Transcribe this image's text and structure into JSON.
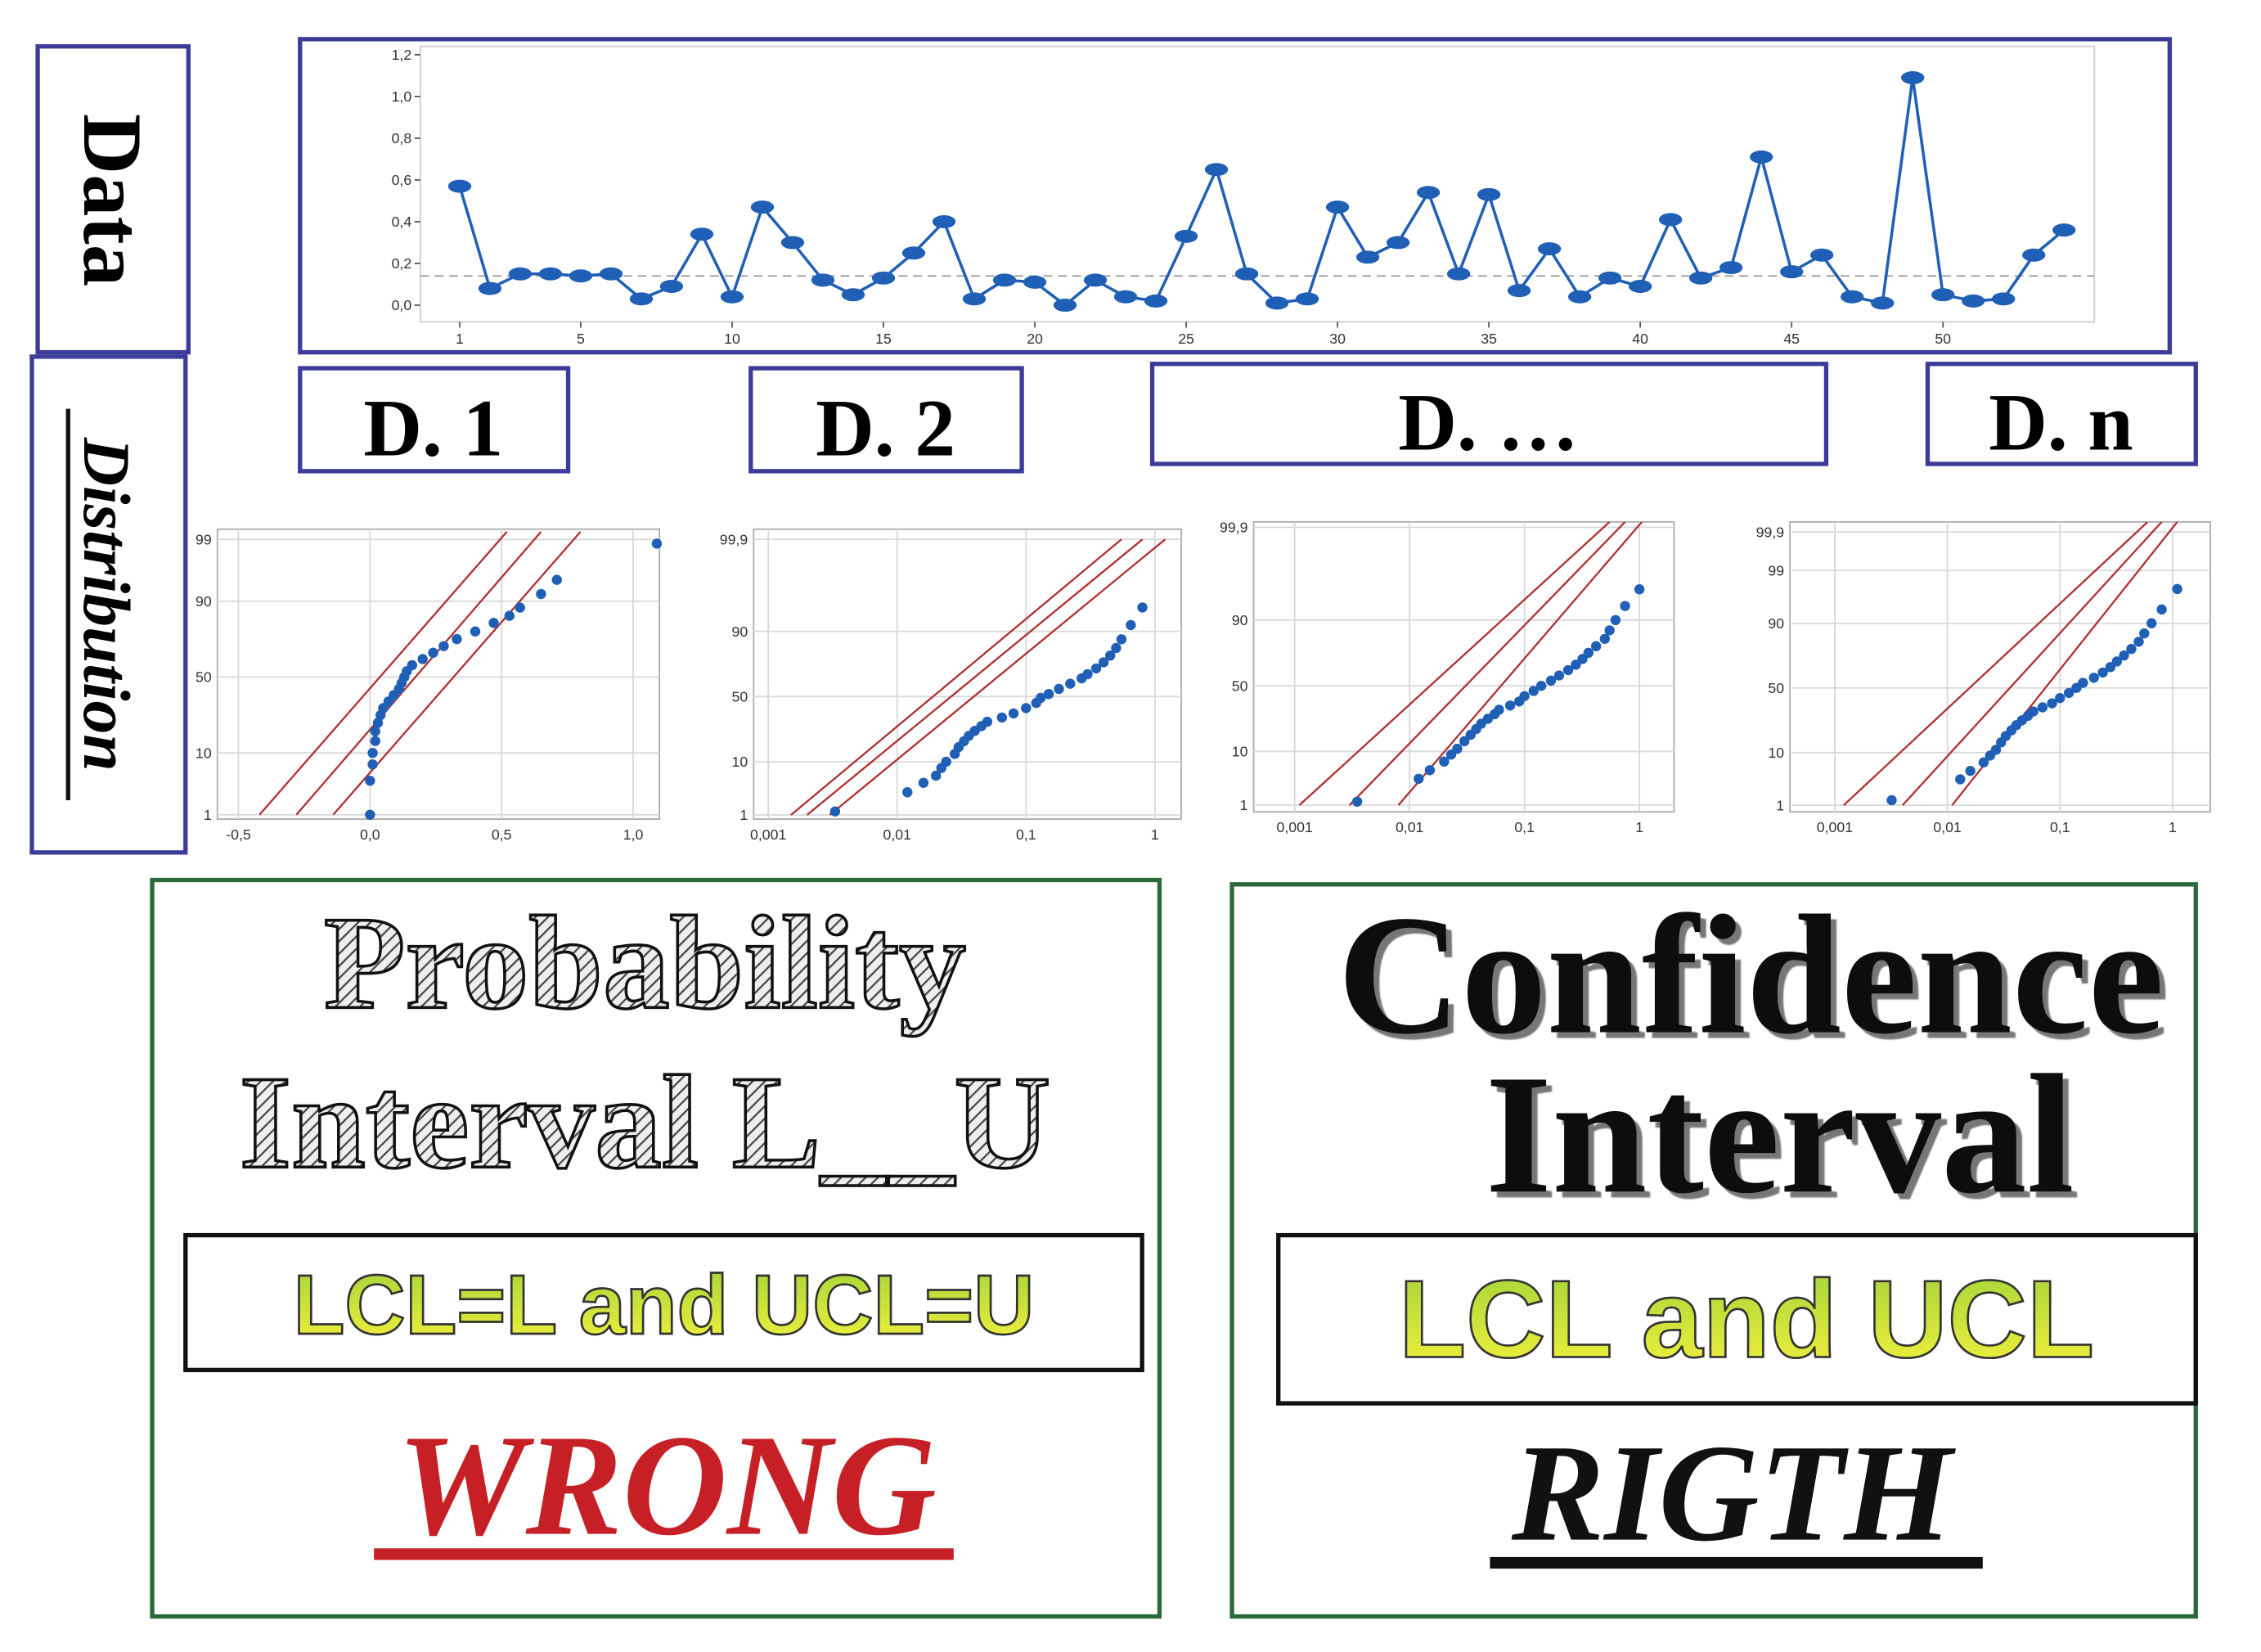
{
  "labels": {
    "data": "Data",
    "distribution": "Distribution"
  },
  "segments": [
    "D. 1",
    "D. 2",
    "D. …",
    "D. n"
  ],
  "chart_data": [
    {
      "type": "line",
      "x": [
        1,
        2,
        3,
        4,
        5,
        6,
        7,
        8,
        9,
        10,
        11,
        12,
        13,
        14,
        15,
        16,
        17,
        18,
        19,
        20,
        21,
        22,
        23,
        24,
        25,
        26,
        27,
        28,
        29,
        30,
        31,
        32,
        33,
        34,
        35,
        36,
        37,
        38,
        39,
        40,
        41,
        42,
        43,
        44,
        45,
        46,
        47,
        48,
        49,
        50,
        51,
        52,
        53,
        54
      ],
      "values": [
        0.57,
        0.08,
        0.15,
        0.15,
        0.14,
        0.15,
        0.03,
        0.09,
        0.34,
        0.04,
        0.47,
        0.3,
        0.12,
        0.05,
        0.13,
        0.25,
        0.4,
        0.03,
        0.12,
        0.11,
        0.0,
        0.12,
        0.04,
        0.02,
        0.33,
        0.65,
        0.15,
        0.01,
        0.03,
        0.47,
        0.23,
        0.3,
        0.54,
        0.15,
        0.53,
        0.07,
        0.27,
        0.04,
        0.13,
        0.09,
        0.41,
        0.13,
        0.18,
        0.71,
        0.16,
        0.24,
        0.04,
        0.01,
        1.09,
        0.05,
        0.02,
        0.03,
        0.24,
        0.36
      ],
      "color": "#1f5fb5",
      "xlim": [
        -0.3,
        55
      ],
      "xticks": [
        1,
        5,
        10,
        15,
        20,
        25,
        30,
        35,
        40,
        45,
        50
      ],
      "ylim": [
        -0.08,
        1.24
      ],
      "yticks": [
        {
          "value": 0,
          "label": "0,0"
        },
        {
          "value": 0.2,
          "label": "0,2"
        },
        {
          "value": 0.4,
          "label": "0,4"
        },
        {
          "value": 0.6,
          "label": "0,6"
        },
        {
          "value": 0.8,
          "label": "0,8"
        },
        {
          "value": 1.0,
          "label": "1,0"
        },
        {
          "value": 1.2,
          "label": "1,2"
        }
      ],
      "reference_line": 0.14
    },
    {
      "type": "probability",
      "xscale": "linear",
      "color": "#1f5fb5",
      "line_color": "#b03030",
      "grid": true,
      "x": [
        0.0,
        0.0,
        0.01,
        0.01,
        0.02,
        0.02,
        0.03,
        0.04,
        0.05,
        0.07,
        0.09,
        0.11,
        0.12,
        0.13,
        0.14,
        0.16,
        0.2,
        0.24,
        0.28,
        0.33,
        0.4,
        0.47,
        0.53,
        0.57,
        0.65,
        0.71,
        1.09
      ],
      "values": [
        1,
        4,
        7,
        10,
        14,
        18,
        22,
        26,
        30,
        34,
        38,
        42,
        46,
        50,
        54,
        58,
        62,
        66,
        70,
        74,
        78,
        82,
        85,
        88,
        92,
        95,
        98.8
      ],
      "fit_lines": [
        [
          [
            -0.42,
            1
          ],
          [
            0.52,
            99.3
          ]
        ],
        [
          [
            -0.28,
            1
          ],
          [
            0.65,
            99.3
          ]
        ],
        [
          [
            -0.14,
            1
          ],
          [
            0.8,
            99.3
          ]
        ]
      ],
      "xlim": [
        -0.58,
        1.1
      ],
      "xticks": [
        {
          "value": -0.5,
          "label": "-0,5"
        },
        {
          "value": 0,
          "label": "0,0"
        },
        {
          "value": 0.5,
          "label": "0,5"
        },
        {
          "value": 1.0,
          "label": "1,0"
        }
      ],
      "ylim": [
        0.82,
        99.38
      ],
      "yticks": [
        1,
        10,
        50,
        90,
        99
      ]
    },
    {
      "type": "probability",
      "xscale": "log",
      "color": "#1f5fb5",
      "line_color": "#b03030",
      "grid": true,
      "x": [
        0.0033,
        0.012,
        0.016,
        0.02,
        0.022,
        0.024,
        0.028,
        0.03,
        0.033,
        0.036,
        0.04,
        0.045,
        0.05,
        0.065,
        0.08,
        0.1,
        0.12,
        0.13,
        0.15,
        0.18,
        0.22,
        0.27,
        0.3,
        0.35,
        0.4,
        0.45,
        0.5,
        0.55,
        0.65,
        0.8
      ],
      "values": [
        1.2,
        3,
        4.5,
        6,
        8,
        10,
        13,
        16,
        19,
        22,
        25,
        28,
        31,
        34,
        37,
        41,
        45,
        49,
        52,
        56,
        60,
        64,
        67,
        71,
        75,
        79,
        83,
        87,
        92,
        96
      ],
      "fit_lines": [
        [
          [
            0.0015,
            1
          ],
          [
            0.55,
            99.9
          ]
        ],
        [
          [
            0.002,
            1
          ],
          [
            0.8,
            99.9
          ]
        ],
        [
          [
            0.003,
            1
          ],
          [
            1.2,
            99.9
          ]
        ]
      ],
      "xlim": [
        0.00077,
        1.6
      ],
      "xticks": [
        {
          "value": 0.001,
          "label": "0,001"
        },
        {
          "value": 0.01,
          "label": "0,01"
        },
        {
          "value": 0.1,
          "label": "0,1"
        },
        1
      ],
      "ylim": [
        0.8,
        99.95
      ],
      "yticks": [
        1,
        10,
        50,
        90,
        {
          "value": 99.9,
          "label": "99,9"
        }
      ]
    },
    {
      "type": "probability",
      "xscale": "log",
      "color": "#1f5fb5",
      "line_color": "#b03030",
      "grid": true,
      "x": [
        0.0035,
        0.012,
        0.015,
        0.02,
        0.023,
        0.026,
        0.03,
        0.034,
        0.038,
        0.042,
        0.048,
        0.055,
        0.06,
        0.075,
        0.09,
        0.1,
        0.12,
        0.14,
        0.17,
        0.2,
        0.24,
        0.28,
        0.32,
        0.36,
        0.42,
        0.5,
        0.55,
        0.62,
        0.75,
        1.0
      ],
      "values": [
        1.2,
        3.5,
        5,
        7,
        9,
        11,
        14,
        17,
        20,
        23,
        26,
        29,
        32,
        35,
        38,
        42,
        46,
        50,
        54,
        58,
        62,
        66,
        70,
        74,
        78,
        82,
        86,
        90,
        94,
        97
      ],
      "fit_lines": [
        [
          [
            0.0011,
            1
          ],
          [
            0.55,
            99.93
          ]
        ],
        [
          [
            0.003,
            1
          ],
          [
            0.75,
            99.93
          ]
        ],
        [
          [
            0.008,
            1
          ],
          [
            1.05,
            99.93
          ]
        ]
      ],
      "xlim": [
        0.00044,
        2.0
      ],
      "xticks": [
        {
          "value": 0.001,
          "label": "0,001"
        },
        {
          "value": 0.01,
          "label": "0,01"
        },
        {
          "value": 0.1,
          "label": "0,1"
        },
        1
      ],
      "ylim": [
        0.7,
        99.93
      ],
      "yticks": [
        1,
        10,
        50,
        90,
        {
          "value": 99.9,
          "label": "99,9"
        }
      ]
    },
    {
      "type": "probability",
      "xscale": "log",
      "color": "#1f5fb5",
      "line_color": "#b03030",
      "grid": true,
      "x": [
        0.0032,
        0.013,
        0.016,
        0.021,
        0.024,
        0.027,
        0.03,
        0.033,
        0.037,
        0.041,
        0.046,
        0.052,
        0.058,
        0.07,
        0.085,
        0.1,
        0.12,
        0.14,
        0.16,
        0.2,
        0.24,
        0.28,
        0.32,
        0.37,
        0.43,
        0.5,
        0.56,
        0.65,
        0.8,
        1.1
      ],
      "values": [
        1.3,
        3.5,
        5,
        7,
        9,
        11,
        14,
        17,
        20,
        23,
        26,
        29,
        32,
        35,
        38,
        42,
        46,
        50,
        54,
        58,
        62,
        66,
        70,
        74,
        78,
        82,
        86,
        90,
        94,
        97.5
      ],
      "fit_lines": [
        [
          [
            0.0012,
            1
          ],
          [
            0.6,
            99.95
          ]
        ],
        [
          [
            0.004,
            1
          ],
          [
            0.8,
            99.95
          ]
        ],
        [
          [
            0.011,
            1
          ],
          [
            1.1,
            99.95
          ]
        ]
      ],
      "xlim": [
        0.0004,
        2.16
      ],
      "xticks": [
        {
          "value": 0.001,
          "label": "0,001"
        },
        {
          "value": 0.01,
          "label": "0,01"
        },
        {
          "value": 0.1,
          "label": "0,1"
        },
        1
      ],
      "ylim": [
        0.7,
        99.95
      ],
      "yticks": [
        1,
        10,
        50,
        90,
        99,
        {
          "value": 99.9,
          "label": "99,9"
        }
      ]
    }
  ],
  "panels": [
    {
      "title": [
        "Probability",
        "Interval L__U"
      ],
      "rule": "LCL=L and UCL=U",
      "verdict": "WRONG"
    },
    {
      "title": [
        "Confidence",
        "Interval"
      ],
      "rule": "LCL and UCL",
      "verdict": "RIGTH"
    }
  ]
}
